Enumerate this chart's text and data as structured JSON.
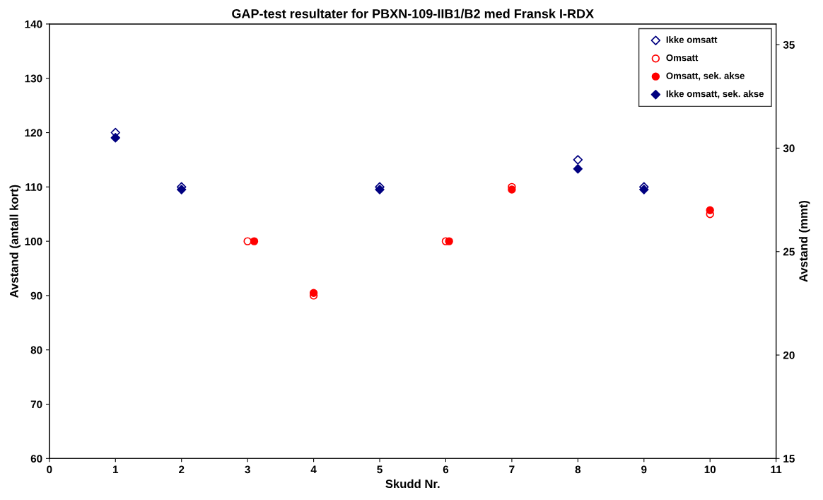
{
  "chart_data": {
    "type": "scatter",
    "title": "GAP-test resultater for PBXN-109-IIB1/B2 med Fransk I-RDX",
    "xlabel": "Skudd Nr.",
    "ylabel": "Avstand (antall kort)",
    "y2label": "Avstand (mmt)",
    "xlim": [
      0,
      11
    ],
    "xticks": [
      0,
      1,
      2,
      3,
      4,
      5,
      6,
      7,
      8,
      9,
      10,
      11
    ],
    "ylim": [
      60,
      140
    ],
    "yticks": [
      60,
      70,
      80,
      90,
      100,
      110,
      120,
      130,
      140
    ],
    "y2lim": [
      15,
      36
    ],
    "y2ticks": [
      15,
      20,
      25,
      30,
      35
    ],
    "grid": false,
    "legend": "top right",
    "series": [
      {
        "name": "Ikke omsatt",
        "color": "#000080",
        "marker": "diamond",
        "x": [
          1,
          2,
          5,
          8,
          9
        ],
        "values": [
          120,
          110,
          110,
          115,
          110
        ]
      },
      {
        "name": "Omsatt",
        "color": "#ff0000",
        "marker": "circle",
        "x": [
          3,
          4,
          6,
          7,
          10
        ],
        "values": [
          100,
          90,
          100,
          110,
          105
        ]
      },
      {
        "name": "Omsatt, sek. akse",
        "color": "#ff0000",
        "marker": "circle",
        "axis": "y2",
        "x": [
          3.1,
          4,
          6.05,
          7,
          10
        ],
        "values": [
          25.5,
          23.0,
          25.5,
          28.0,
          27.0
        ]
      },
      {
        "name": "Ikke omsatt, sek. akse",
        "color": "#000080",
        "marker": "diamond",
        "axis": "y2",
        "x": [
          1,
          2,
          5,
          8,
          9
        ],
        "values": [
          30.5,
          28.0,
          28.0,
          29.0,
          28.0
        ]
      }
    ]
  }
}
